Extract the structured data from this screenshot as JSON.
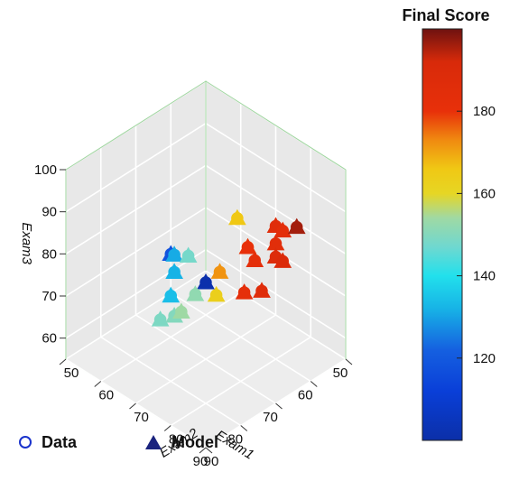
{
  "chart_data": {
    "type": "scatter3d",
    "axes": {
      "x": {
        "label": "Exam1",
        "range": [
          50,
          90
        ],
        "ticks": [
          50,
          60,
          70,
          80,
          90
        ]
      },
      "y": {
        "label": "Exam2",
        "range": [
          50,
          90
        ],
        "ticks": [
          50,
          60,
          70,
          80,
          90
        ]
      },
      "z": {
        "label": "Exam3",
        "range": [
          55,
          100
        ],
        "ticks": [
          60,
          70,
          80,
          90,
          100
        ]
      }
    },
    "grid": true,
    "colorbar": {
      "title": "Final Score",
      "range": [
        100,
        200
      ],
      "ticks": [
        120,
        140,
        160,
        180
      ],
      "colormap": "jet"
    },
    "legend": {
      "position": "bottom-left",
      "items": [
        {
          "label": "Data",
          "marker": "open-circle",
          "color": "#1a33cc"
        },
        {
          "label": "Model",
          "marker": "filled-triangle",
          "color": "#1a237e"
        }
      ]
    },
    "points": [
      {
        "exam1": 50,
        "exam2": 50,
        "exam3": 52,
        "final": 101
      },
      {
        "exam1": 60,
        "exam2": 50,
        "exam3": 64,
        "final": 118
      },
      {
        "exam1": 73,
        "exam2": 64,
        "exam3": 78,
        "final": 131
      },
      {
        "exam1": 75,
        "exam2": 66,
        "exam3": 76,
        "final": 132
      },
      {
        "exam1": 78,
        "exam2": 68,
        "exam3": 73,
        "final": 134
      },
      {
        "exam1": 76,
        "exam2": 71,
        "exam3": 83,
        "final": 148
      },
      {
        "exam1": 78,
        "exam2": 75,
        "exam3": 77,
        "final": 152
      },
      {
        "exam1": 83,
        "exam2": 70,
        "exam3": 71,
        "final": 149
      },
      {
        "exam1": 83,
        "exam2": 74,
        "exam3": 74,
        "final": 150
      },
      {
        "exam1": 83,
        "exam2": 76,
        "exam3": 76,
        "final": 154
      },
      {
        "exam1": 70,
        "exam2": 79,
        "exam3": 93,
        "final": 166
      },
      {
        "exam1": 78,
        "exam2": 81,
        "exam3": 80,
        "final": 163
      },
      {
        "exam1": 78,
        "exam2": 82,
        "exam3": 86,
        "final": 172
      },
      {
        "exam1": 76,
        "exam2": 88,
        "exam3": 94,
        "final": 176
      },
      {
        "exam1": 77,
        "exam2": 89,
        "exam3": 95,
        "final": 180
      },
      {
        "exam1": 72,
        "exam2": 92,
        "exam3": 99,
        "final": 186
      },
      {
        "exam1": 73,
        "exam2": 95,
        "exam3": 100,
        "final": 184
      },
      {
        "exam1": 75,
        "exam2": 95,
        "exam3": 98,
        "final": 185
      },
      {
        "exam1": 78,
        "exam2": 92,
        "exam3": 94,
        "final": 183
      },
      {
        "exam1": 78,
        "exam2": 98,
        "exam3": 98,
        "final": 188
      },
      {
        "exam1": 78,
        "exam2": 100,
        "exam3": 98,
        "final": 190
      },
      {
        "exam1": 82,
        "exam2": 98,
        "exam3": 92,
        "final": 187
      },
      {
        "exam1": 82,
        "exam2": 93,
        "exam3": 89,
        "final": 182
      },
      {
        "exam1": 74,
        "exam2": 100,
        "exam3": 104,
        "final": 196
      }
    ]
  }
}
